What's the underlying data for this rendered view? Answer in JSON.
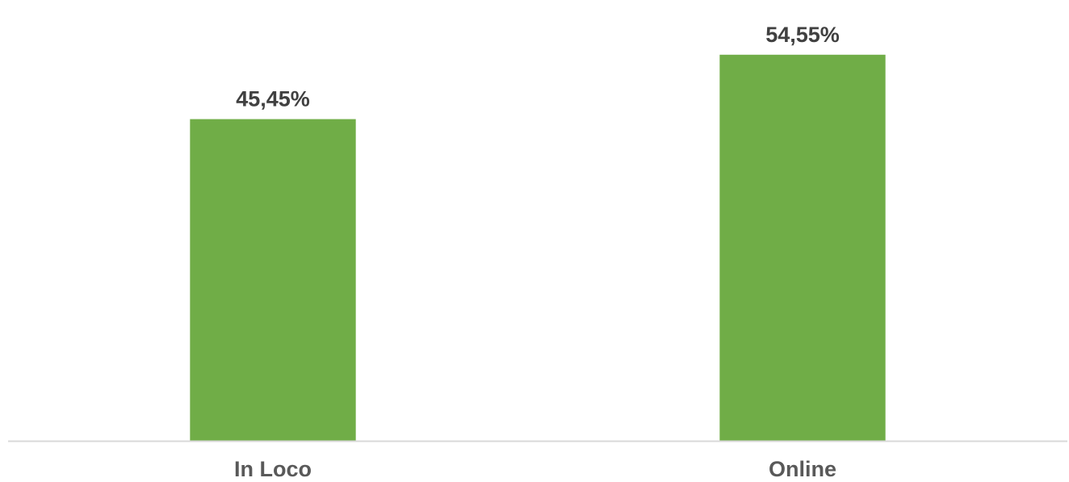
{
  "chart_data": {
    "type": "bar",
    "categories": [
      "In Loco",
      "Online"
    ],
    "values": [
      45.45,
      54.55
    ],
    "data_labels": [
      "45,45%",
      "54,55%"
    ],
    "ylim": [
      0,
      60
    ],
    "grid": false,
    "bar_color": "#70AD47",
    "axis_color": "#D9D9D9"
  }
}
